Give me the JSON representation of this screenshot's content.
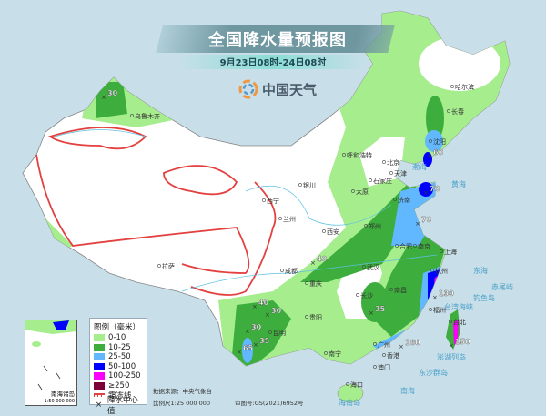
{
  "title": "全国降水量预报图",
  "subtitle": "9月23日08时-24日08时",
  "brand": "中国天气",
  "colors": {
    "sea": "#c8dfe9",
    "land": "#ffffff",
    "r0_10": "#a6ed8e",
    "r10_25": "#3dae3d",
    "r25_50": "#62b8ff",
    "r50_100": "#0000fe",
    "r100_250": "#fb00fb",
    "r250": "#7e0038",
    "frost": "#e34040"
  },
  "legend": {
    "title": "图例（毫米）",
    "items": [
      {
        "label": "0-10",
        "color": "#a6ed8e"
      },
      {
        "label": "10-25",
        "color": "#3dae3d"
      },
      {
        "label": "25-50",
        "color": "#62b8ff"
      },
      {
        "label": "50-100",
        "color": "#0000fe"
      },
      {
        "label": "100-250",
        "color": "#fb00fb"
      },
      {
        "label": "≥250",
        "color": "#7e0038"
      }
    ],
    "frost_label": "霜冻线",
    "center_label": "降水中心值"
  },
  "footer": {
    "source": "数据来源：中央气象台",
    "scale": "比例尺1:25 000 000",
    "review": "审图号:GS(2021)6952号"
  },
  "inset": {
    "title": "南海诸岛",
    "scale": "1:50 000 000"
  },
  "cities": [
    "乌鲁木齐",
    "拉萨",
    "西宁",
    "兰州",
    "银川",
    "呼和浩特",
    "北京",
    "天津",
    "石家庄",
    "太原",
    "济南",
    "郑州",
    "西安",
    "成都",
    "重庆",
    "武汉",
    "长沙",
    "南昌",
    "合肥",
    "南京",
    "上海",
    "杭州",
    "福州",
    "台北",
    "广州",
    "香港",
    "澳门",
    "南宁",
    "海口",
    "贵阳",
    "昆明",
    "沈阳",
    "长春",
    "哈尔滨"
  ],
  "seas": [
    "黄海",
    "东海",
    "南海",
    "渤海",
    "台湾海峡",
    "东沙群岛",
    "钓鱼岛",
    "赤尾屿",
    "澎湖列岛",
    "海南岛"
  ],
  "rain_centers": [
    "30",
    "60",
    "70",
    "70",
    "40",
    "40",
    "30",
    "30",
    "35",
    "65",
    "35",
    "130",
    "150",
    "160"
  ]
}
